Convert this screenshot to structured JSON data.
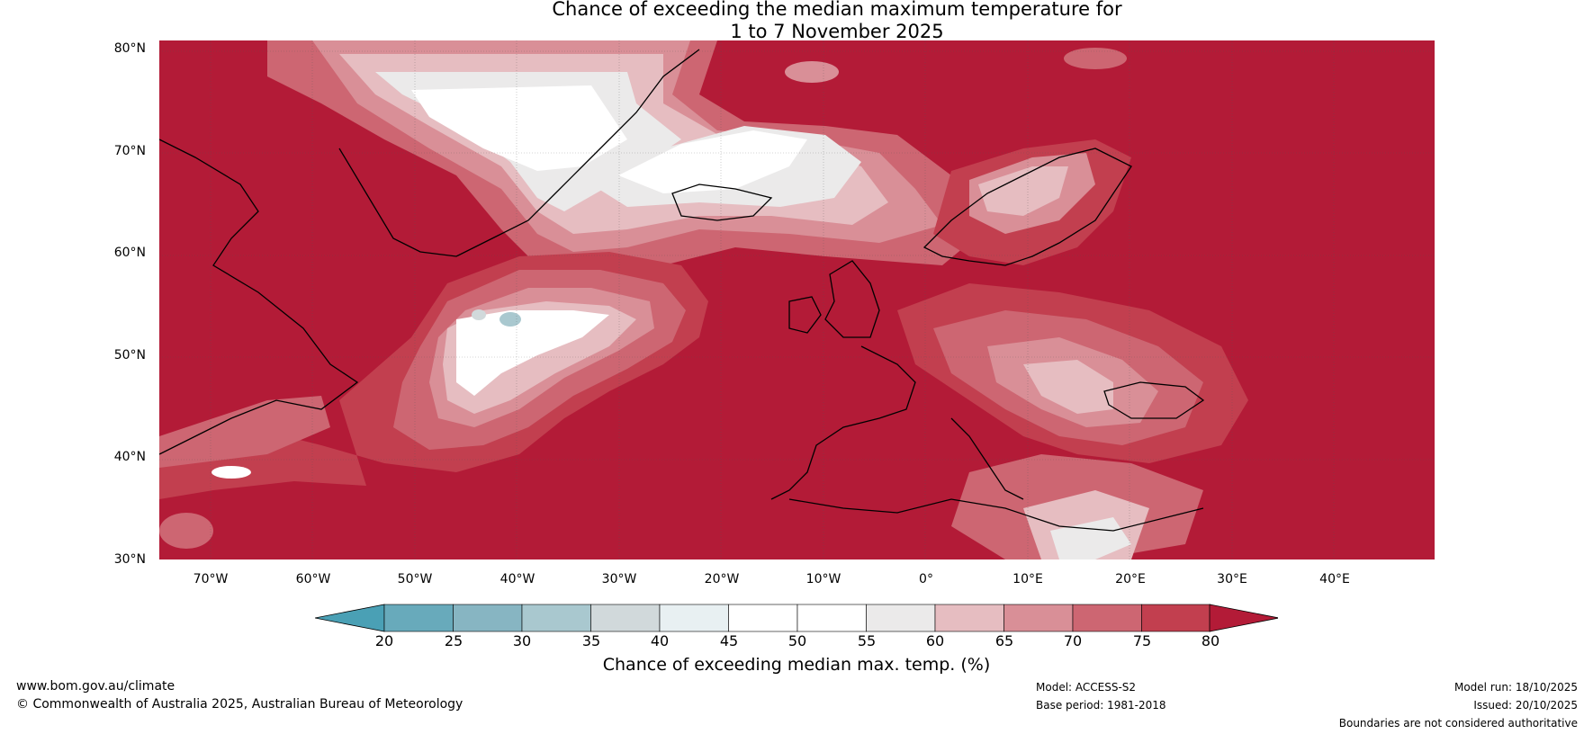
{
  "title": {
    "line1": "Chance of exceeding the median maximum temperature for",
    "line2": "1 to 7 November 2025"
  },
  "map": {
    "lat_labels": [
      "80°N",
      "70°N",
      "60°N",
      "50°N",
      "40°N",
      "30°N"
    ],
    "lon_labels": [
      "70°W",
      "60°W",
      "50°W",
      "40°W",
      "30°W",
      "20°W",
      "10°W",
      "0°",
      "10°E",
      "20°E",
      "30°E",
      "40°E"
    ],
    "colors": {
      "c80": "#b31b37",
      "c75": "#c23f4f",
      "c70": "#cd6672",
      "c65": "#d98f97",
      "c60": "#e6bdc1",
      "c55": "#ebeaea",
      "c50": "#ffffff",
      "c45": "#ffffff",
      "c40": "#e8f0f2",
      "c35": "#d1d9db",
      "c30": "#a9c8cf",
      "c25": "#87b5c2",
      "c20": "#68aabb",
      "clow": "#4aa0b5"
    }
  },
  "colorbar": {
    "ticks": [
      "20",
      "25",
      "30",
      "35",
      "40",
      "45",
      "50",
      "55",
      "60",
      "65",
      "70",
      "75",
      "80"
    ],
    "colors": [
      "#68aabb",
      "#87b5c2",
      "#a9c8cf",
      "#d1d9db",
      "#e8f0f2",
      "#ffffff",
      "#ffffff",
      "#ebeaea",
      "#e6bdc1",
      "#d98f97",
      "#cd6672",
      "#c23f4f"
    ],
    "low_color": "#4aa0b5",
    "high_color": "#b31b37",
    "label": "Chance of exceeding median max. temp. (%)"
  },
  "footer": {
    "website": "www.bom.gov.au/climate",
    "copyright": "© Commonwealth of Australia 2025, Australian Bureau of Meteorology",
    "model": "Model: ACCESS-S2",
    "base_period": "Base period: 1981-2018",
    "model_run": "Model run: 18/10/2025",
    "issued": "Issued: 20/10/2025",
    "disclaimer": "Boundaries are not considered authoritative"
  }
}
